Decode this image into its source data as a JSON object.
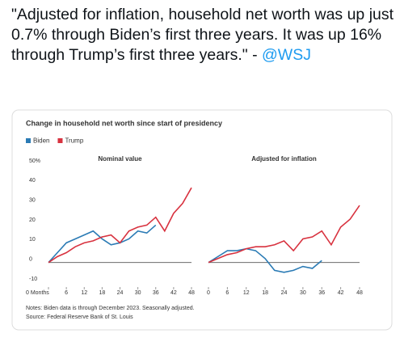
{
  "tweet": {
    "text": "\"Adjusted for inflation, household net worth was up just 0.7% through Biden’s first three years. It was up 16% through Trump’s first three years.\" - ",
    "handle": "@WSJ"
  },
  "figure_title": "Change in household net worth since start of presidency",
  "notes": "Notes: Biden data is through December 2023. Seasonally adjusted.",
  "source": "Source: Federal Reserve Bank of St. Louis",
  "chart_data": [
    {
      "type": "line",
      "title": "Nominal value",
      "x": [
        0,
        3,
        6,
        9,
        12,
        15,
        18,
        21,
        24,
        27,
        30,
        33,
        36,
        39,
        42,
        45,
        48
      ],
      "series": [
        {
          "name": "Biden",
          "color": "#2b7bb5",
          "values": [
            0,
            5,
            10,
            12,
            14,
            16,
            12,
            9,
            10,
            12,
            16,
            15,
            19,
            null,
            null,
            null,
            null
          ]
        },
        {
          "name": "Trump",
          "color": "#d8323f",
          "values": [
            0,
            3,
            5,
            8,
            10,
            11,
            13,
            14,
            10,
            16,
            18,
            19,
            23,
            16,
            25,
            30,
            38
          ]
        }
      ],
      "xlim": [
        0,
        48
      ],
      "xticks": [
        {
          "value": 0,
          "label": "0 Months"
        },
        6,
        12,
        18,
        24,
        30,
        36,
        42,
        48
      ],
      "ylim": [
        -10,
        50
      ],
      "yticks": [
        -10,
        0,
        10,
        20,
        30,
        40,
        {
          "value": 50,
          "label": "50%"
        }
      ]
    },
    {
      "type": "line",
      "title": "Adjusted for inflation",
      "x": [
        0,
        3,
        6,
        9,
        12,
        15,
        18,
        21,
        24,
        27,
        30,
        33,
        36,
        39,
        42,
        45,
        48
      ],
      "series": [
        {
          "color": "#2b7bb5",
          "values": [
            0,
            3,
            6,
            6,
            7,
            6,
            2,
            -4,
            -5,
            -4,
            -2,
            -3,
            1,
            null,
            null,
            null,
            null
          ]
        },
        {
          "color": "#d8323f",
          "values": [
            0,
            2,
            4,
            5,
            7,
            8,
            8,
            9,
            11,
            6,
            12,
            13,
            16,
            9,
            18,
            22,
            29
          ]
        }
      ],
      "xlim": [
        0,
        48
      ],
      "xticks": [
        0,
        6,
        12,
        18,
        24,
        30,
        36,
        42,
        48
      ],
      "ylim": [
        -10,
        50
      ]
    }
  ]
}
